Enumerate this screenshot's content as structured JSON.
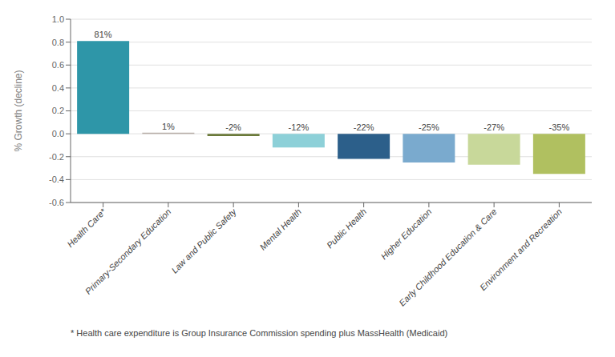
{
  "chart_data": {
    "type": "bar",
    "categories": [
      "Health Care*",
      "Primary-Secondary Education",
      "Law and Public Safety",
      "Mental Health",
      "Public Health",
      "Higher Education",
      "Early Childhood Education & Care",
      "Environment and Recreation"
    ],
    "values": [
      0.81,
      0.01,
      -0.02,
      -0.12,
      -0.22,
      -0.25,
      -0.27,
      -0.35
    ],
    "value_labels": [
      "81%",
      "1%",
      "-2%",
      "-12%",
      "-22%",
      "-25%",
      "-27%",
      "-35%"
    ],
    "colors": [
      "#2e96a8",
      "#b8aea8",
      "#6b7a3a",
      "#8dd0d8",
      "#2c5f8a",
      "#7aaace",
      "#c8d89a",
      "#b0c060"
    ],
    "ylabel": "% Growth (decline)",
    "ylim": [
      -0.6,
      1.0
    ],
    "yticks": [
      -0.6,
      -0.4,
      -0.2,
      {
        "value": 0,
        "label": "0.0"
      },
      0.2,
      0.4,
      0.6,
      0.8,
      {
        "value": 1,
        "label": "1.0"
      }
    ],
    "grid": true,
    "data_labels": true,
    "annotations": [
      "* Health care expenditure is Group Insurance Commission spending plus MassHealth (Medicaid)"
    ]
  }
}
